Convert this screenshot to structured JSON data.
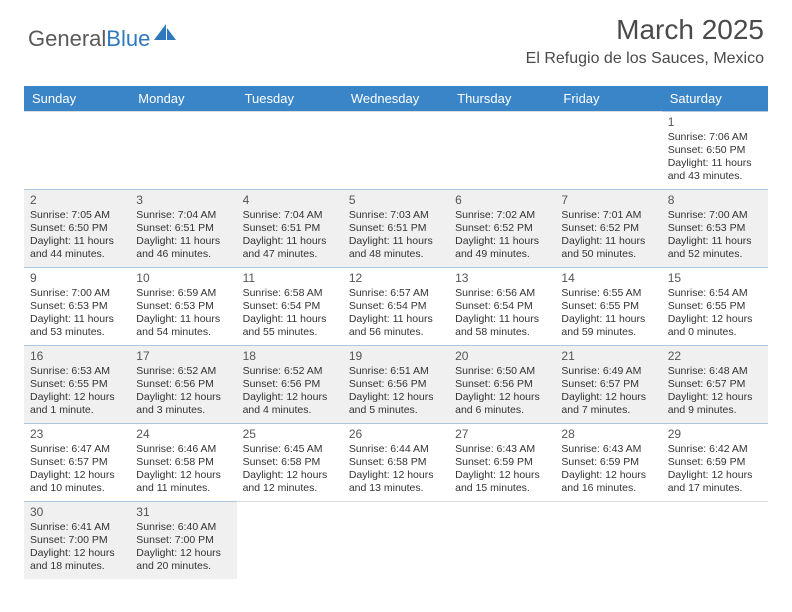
{
  "logo": {
    "part1": "General",
    "part2": "Blue",
    "color_general": "#5a5a5a",
    "color_blue": "#2f78bd"
  },
  "title": "March 2025",
  "subtitle": "El Refugio de los Sauces, Mexico",
  "title_color": "#4a4a4a",
  "header_bg": "#3a85c8",
  "header_fg": "#ffffff",
  "row_border_color": "#adc7df",
  "shaded_bg": "#f0f0f0",
  "weekdays": [
    "Sunday",
    "Monday",
    "Tuesday",
    "Wednesday",
    "Thursday",
    "Friday",
    "Saturday"
  ],
  "shaded_rows": [
    1,
    3,
    5
  ],
  "weeks": [
    [
      null,
      null,
      null,
      null,
      null,
      null,
      {
        "n": "1",
        "sr": "7:06 AM",
        "ss": "6:50 PM",
        "dl": "11 hours and 43 minutes."
      }
    ],
    [
      {
        "n": "2",
        "sr": "7:05 AM",
        "ss": "6:50 PM",
        "dl": "11 hours and 44 minutes."
      },
      {
        "n": "3",
        "sr": "7:04 AM",
        "ss": "6:51 PM",
        "dl": "11 hours and 46 minutes."
      },
      {
        "n": "4",
        "sr": "7:04 AM",
        "ss": "6:51 PM",
        "dl": "11 hours and 47 minutes."
      },
      {
        "n": "5",
        "sr": "7:03 AM",
        "ss": "6:51 PM",
        "dl": "11 hours and 48 minutes."
      },
      {
        "n": "6",
        "sr": "7:02 AM",
        "ss": "6:52 PM",
        "dl": "11 hours and 49 minutes."
      },
      {
        "n": "7",
        "sr": "7:01 AM",
        "ss": "6:52 PM",
        "dl": "11 hours and 50 minutes."
      },
      {
        "n": "8",
        "sr": "7:00 AM",
        "ss": "6:53 PM",
        "dl": "11 hours and 52 minutes."
      }
    ],
    [
      {
        "n": "9",
        "sr": "7:00 AM",
        "ss": "6:53 PM",
        "dl": "11 hours and 53 minutes."
      },
      {
        "n": "10",
        "sr": "6:59 AM",
        "ss": "6:53 PM",
        "dl": "11 hours and 54 minutes."
      },
      {
        "n": "11",
        "sr": "6:58 AM",
        "ss": "6:54 PM",
        "dl": "11 hours and 55 minutes."
      },
      {
        "n": "12",
        "sr": "6:57 AM",
        "ss": "6:54 PM",
        "dl": "11 hours and 56 minutes."
      },
      {
        "n": "13",
        "sr": "6:56 AM",
        "ss": "6:54 PM",
        "dl": "11 hours and 58 minutes."
      },
      {
        "n": "14",
        "sr": "6:55 AM",
        "ss": "6:55 PM",
        "dl": "11 hours and 59 minutes."
      },
      {
        "n": "15",
        "sr": "6:54 AM",
        "ss": "6:55 PM",
        "dl": "12 hours and 0 minutes."
      }
    ],
    [
      {
        "n": "16",
        "sr": "6:53 AM",
        "ss": "6:55 PM",
        "dl": "12 hours and 1 minute."
      },
      {
        "n": "17",
        "sr": "6:52 AM",
        "ss": "6:56 PM",
        "dl": "12 hours and 3 minutes."
      },
      {
        "n": "18",
        "sr": "6:52 AM",
        "ss": "6:56 PM",
        "dl": "12 hours and 4 minutes."
      },
      {
        "n": "19",
        "sr": "6:51 AM",
        "ss": "6:56 PM",
        "dl": "12 hours and 5 minutes."
      },
      {
        "n": "20",
        "sr": "6:50 AM",
        "ss": "6:56 PM",
        "dl": "12 hours and 6 minutes."
      },
      {
        "n": "21",
        "sr": "6:49 AM",
        "ss": "6:57 PM",
        "dl": "12 hours and 7 minutes."
      },
      {
        "n": "22",
        "sr": "6:48 AM",
        "ss": "6:57 PM",
        "dl": "12 hours and 9 minutes."
      }
    ],
    [
      {
        "n": "23",
        "sr": "6:47 AM",
        "ss": "6:57 PM",
        "dl": "12 hours and 10 minutes."
      },
      {
        "n": "24",
        "sr": "6:46 AM",
        "ss": "6:58 PM",
        "dl": "12 hours and 11 minutes."
      },
      {
        "n": "25",
        "sr": "6:45 AM",
        "ss": "6:58 PM",
        "dl": "12 hours and 12 minutes."
      },
      {
        "n": "26",
        "sr": "6:44 AM",
        "ss": "6:58 PM",
        "dl": "12 hours and 13 minutes."
      },
      {
        "n": "27",
        "sr": "6:43 AM",
        "ss": "6:59 PM",
        "dl": "12 hours and 15 minutes."
      },
      {
        "n": "28",
        "sr": "6:43 AM",
        "ss": "6:59 PM",
        "dl": "12 hours and 16 minutes."
      },
      {
        "n": "29",
        "sr": "6:42 AM",
        "ss": "6:59 PM",
        "dl": "12 hours and 17 minutes."
      }
    ],
    [
      {
        "n": "30",
        "sr": "6:41 AM",
        "ss": "7:00 PM",
        "dl": "12 hours and 18 minutes."
      },
      {
        "n": "31",
        "sr": "6:40 AM",
        "ss": "7:00 PM",
        "dl": "12 hours and 20 minutes."
      },
      null,
      null,
      null,
      null,
      null
    ]
  ],
  "labels": {
    "sunrise": "Sunrise: ",
    "sunset": "Sunset: ",
    "daylight": "Daylight: "
  },
  "cell_fontsize": 10.5,
  "daynum_fontsize": 12
}
